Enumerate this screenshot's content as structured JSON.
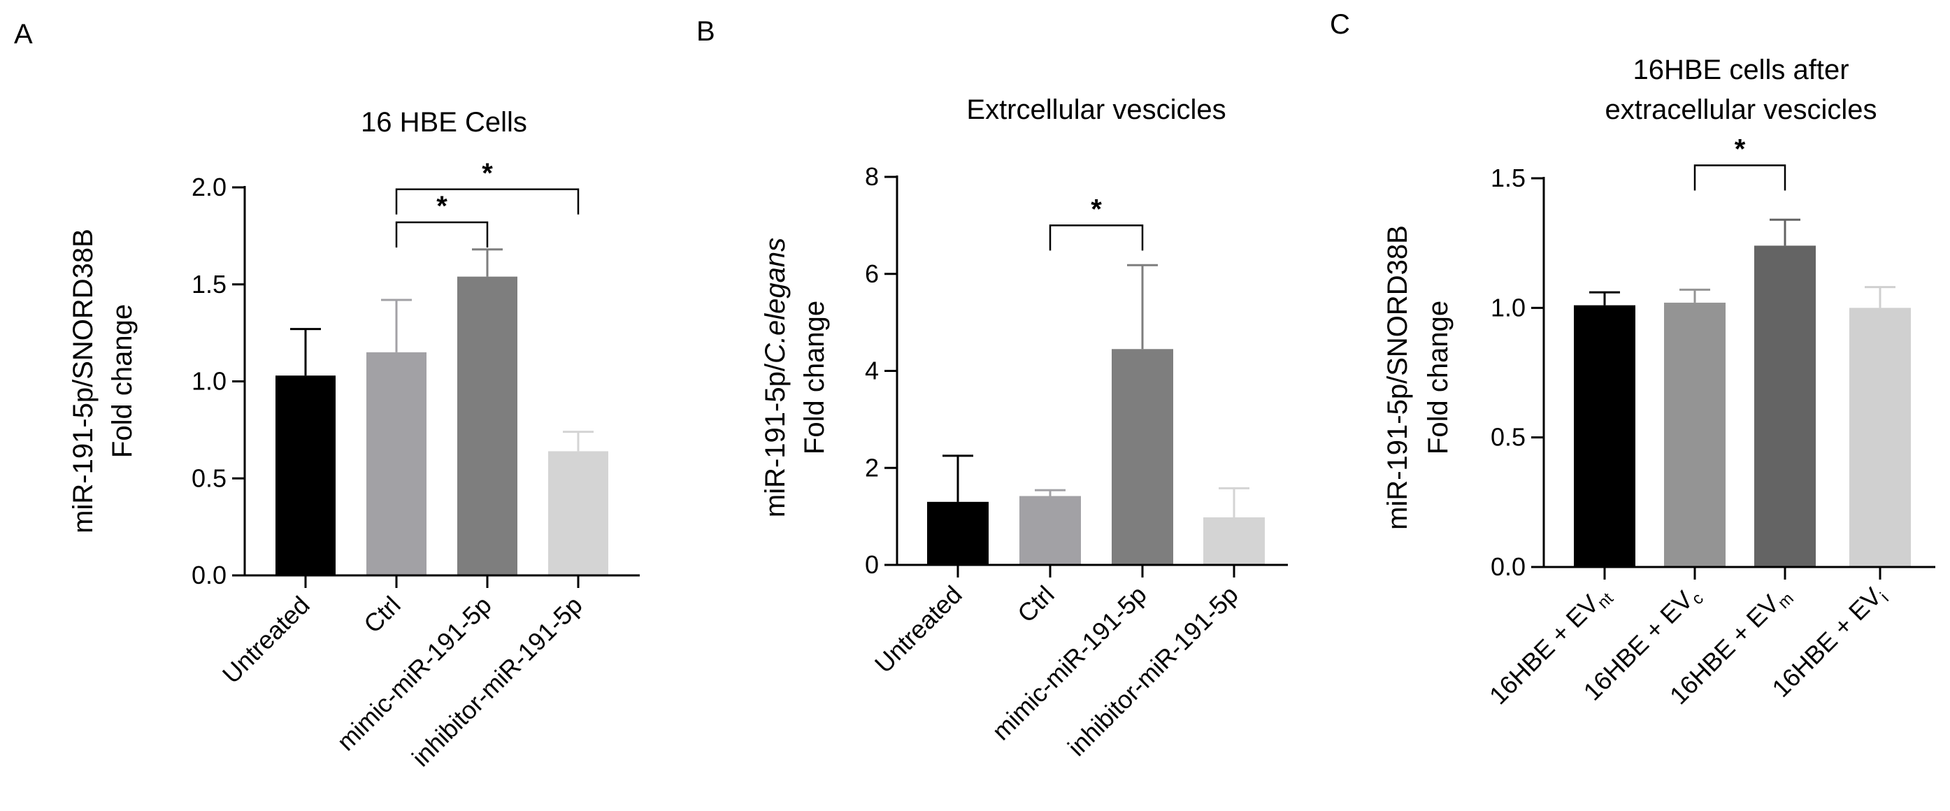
{
  "chart_data": [
    {
      "panel_letter": "A",
      "type": "bar",
      "title_lines": [
        "16 HBE Cells"
      ],
      "ylabel_lines": [
        "miR-191-5p/SNORD38B",
        "Fold change"
      ],
      "xlabel": "",
      "ylim": [
        0,
        2.0
      ],
      "yticks": [
        0.0,
        0.5,
        1.0,
        1.5,
        2.0
      ],
      "ytick_labels": [
        "0.0",
        "0.5",
        "1.0",
        "1.5",
        "2.0"
      ],
      "categories": [
        "Untreated",
        "Ctrl",
        "mimic-miR-191-5p",
        "inhibitor-miR-191-5p"
      ],
      "values": [
        1.03,
        1.15,
        1.54,
        0.64
      ],
      "errors": [
        0.24,
        0.27,
        0.14,
        0.1
      ],
      "colors": [
        "#000000",
        "#a2a1a5",
        "#7e7e7e",
        "#d4d4d4"
      ],
      "significance": [
        {
          "from": 1,
          "to": 2,
          "label": "*",
          "y": 1.82
        },
        {
          "from": 1,
          "to": 3,
          "label": "*",
          "y": 1.99
        }
      ]
    },
    {
      "panel_letter": "B",
      "type": "bar",
      "title_lines": [
        "Extrcellular vescicles"
      ],
      "ylabel_plain": "miR-191-5p/",
      "ylabel_italic": "C.elegans",
      "ylabel_line2": "Fold change",
      "xlabel": "",
      "ylim": [
        0,
        8
      ],
      "yticks": [
        0,
        2,
        4,
        6,
        8
      ],
      "ytick_labels": [
        "0",
        "2",
        "4",
        "6",
        "8"
      ],
      "categories": [
        "Untreated",
        "Ctrl",
        "mimic-miR-191-5p",
        "inhibitor-miR-191-5p"
      ],
      "values": [
        1.3,
        1.42,
        4.45,
        0.98
      ],
      "errors": [
        0.95,
        0.12,
        1.73,
        0.6
      ],
      "colors": [
        "#000000",
        "#a2a1a5",
        "#7e7e7e",
        "#d4d4d4"
      ],
      "significance": [
        {
          "from": 1,
          "to": 2,
          "label": "*",
          "y": 7.0
        }
      ]
    },
    {
      "panel_letter": "C",
      "type": "bar",
      "title_lines": [
        "16HBE cells after",
        "extracellular vescicles"
      ],
      "ylabel_lines": [
        "miR-191-5p/SNORD38B",
        "Fold change"
      ],
      "xlabel": "",
      "ylim": [
        0,
        1.5
      ],
      "yticks": [
        0.0,
        0.5,
        1.0,
        1.5
      ],
      "ytick_labels": [
        "0.0",
        "0.5",
        "1.0",
        "1.5"
      ],
      "categories": [
        {
          "base": "16HBE + EV",
          "sub": "nt"
        },
        {
          "base": "16HBE + EV",
          "sub": "c"
        },
        {
          "base": "16HBE + EV",
          "sub": "m"
        },
        {
          "base": "16HBE + EV",
          "sub": "i"
        }
      ],
      "values": [
        1.01,
        1.02,
        1.24,
        1.0
      ],
      "errors": [
        0.05,
        0.05,
        0.1,
        0.08
      ],
      "colors": [
        "#000000",
        "#949494",
        "#646464",
        "#d0d0d0"
      ],
      "significance": [
        {
          "from": 1,
          "to": 2,
          "label": "*",
          "y": 1.55
        }
      ]
    }
  ]
}
